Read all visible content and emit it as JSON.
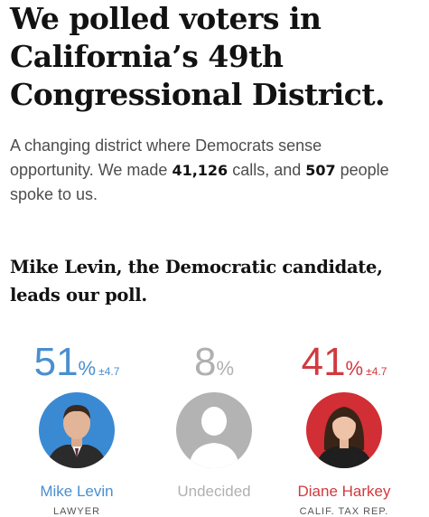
{
  "headline": {
    "line1": "We polled voters in",
    "line2": "California’s 49th",
    "line3": "Congressional District."
  },
  "deck": {
    "line1": "A changing district where Democrats sense",
    "line2_pre": "opportunity. We made ",
    "calls": "41,126",
    "line2_mid": " calls, and ",
    "people": "507",
    "line2_post": " people",
    "line3": "spoke to us."
  },
  "subhead": {
    "line1": "Mike Levin, the Democratic candidate,",
    "line2": "leads our poll."
  },
  "candidates": [
    {
      "name": "Mike Levin",
      "occupation": "LAWYER",
      "percent": "51",
      "percent_sign": "%",
      "margin": "±4.7",
      "color": "#4a8fcf",
      "icon": "person-photo-icon"
    },
    {
      "name": "Undecided",
      "percent": "8",
      "percent_sign": "%",
      "color": "#b0b0b0",
      "icon": "person-silhouette-icon"
    },
    {
      "name": "Diane Harkey",
      "occupation": "CALIF. TAX REP.",
      "percent": "41",
      "percent_sign": "%",
      "margin": "±4.7",
      "color": "#d13a3f",
      "icon": "person-photo-icon"
    }
  ]
}
